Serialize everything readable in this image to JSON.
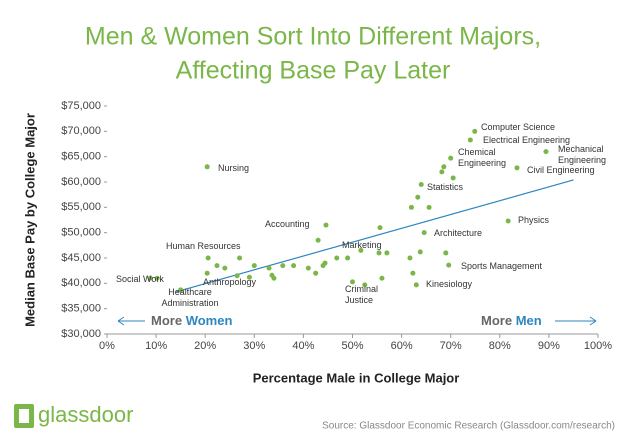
{
  "chart_data": {
    "type": "scatter",
    "title": [
      "Men & Women Sort Into Different Majors,",
      "Affecting Base Pay Later"
    ],
    "x_label": "Percentage Male in College Major",
    "y_label": "Median Base Pay by College Major",
    "direction_left": [
      "More",
      "Women"
    ],
    "direction_right": [
      "More",
      "Men"
    ],
    "color": "#7ab648",
    "xlim": [
      0,
      100
    ],
    "ylim": [
      30000,
      75000
    ],
    "xticks": [
      {
        "value": 0,
        "label": "0%"
      },
      {
        "value": 10,
        "label": "10%"
      },
      {
        "value": 20,
        "label": "20%"
      },
      {
        "value": 30,
        "label": "30%"
      },
      {
        "value": 40,
        "label": "40%"
      },
      {
        "value": 50,
        "label": "50%"
      },
      {
        "value": 60,
        "label": "60%"
      },
      {
        "value": 70,
        "label": "70%"
      },
      {
        "value": 80,
        "label": "80%"
      },
      {
        "value": 90,
        "label": "90%"
      },
      {
        "value": 100,
        "label": "100%"
      }
    ],
    "yticks": [
      {
        "value": 30000,
        "label": "$30,000"
      },
      {
        "value": 35000,
        "label": "$35,000"
      },
      {
        "value": 40000,
        "label": "$40,000"
      },
      {
        "value": 45000,
        "label": "$45,000"
      },
      {
        "value": 50000,
        "label": "$50,000"
      },
      {
        "value": 55000,
        "label": "$55,000"
      },
      {
        "value": 60000,
        "label": "$60,000"
      },
      {
        "value": 65000,
        "label": "$65,000"
      },
      {
        "value": 70000,
        "label": "$70,000"
      },
      {
        "value": 75000,
        "label": "$75,000"
      }
    ],
    "x": [
      8.8,
      10.2,
      15,
      20.4,
      20.6,
      20.4,
      22.4,
      24,
      27,
      26.5,
      29,
      30,
      33,
      33.6,
      34,
      35.8,
      38,
      41,
      42.5,
      44,
      44.4,
      43,
      44.6,
      46.8,
      49,
      51.7,
      55.4,
      50,
      52.5,
      56,
      55.6,
      57,
      61.7,
      62.3,
      63,
      64.6,
      63.8,
      69,
      69.6,
      62,
      63.3,
      64,
      65.6,
      68.2,
      68.6,
      70,
      70.5,
      74,
      74.9,
      83.5,
      81.7,
      89.4
    ],
    "values": [
      41000,
      41000,
      38700,
      63000,
      45000,
      42000,
      43500,
      43000,
      45000,
      41500,
      41200,
      43500,
      43000,
      41600,
      41000,
      43500,
      43500,
      43000,
      42000,
      43500,
      44000,
      48500,
      51500,
      45000,
      45000,
      46500,
      46000,
      40300,
      39700,
      41000,
      51000,
      46000,
      45000,
      42000,
      39700,
      50000,
      46200,
      46000,
      43600,
      55000,
      57000,
      59500,
      55000,
      62000,
      63000,
      64700,
      60800,
      68300,
      70000,
      62800,
      52300,
      66000
    ],
    "trendline": {
      "color": "#2e86c1",
      "x": [
        14,
        95
      ],
      "y": [
        38300,
        60400
      ]
    },
    "annotations": [
      [
        "Computer Science"
      ],
      [
        "Electrical Engineering"
      ],
      [
        "Chemical",
        "Engineering"
      ],
      [
        "Mechanical",
        "Engineering"
      ],
      [
        "Civil Engineering"
      ],
      [
        "Nursing"
      ],
      [
        "Statistics"
      ],
      [
        "Accounting"
      ],
      [
        "Physics"
      ],
      [
        "Architecture"
      ],
      [
        "Human Resources"
      ],
      [
        "Marketing"
      ],
      [
        "Sports Management"
      ],
      [
        "Social Work"
      ],
      [
        "Anthropology"
      ],
      [
        "Kinesiology"
      ],
      [
        "Healthcare",
        "Administration"
      ],
      [
        "Criminal",
        "Justice"
      ]
    ]
  },
  "footer": {
    "logo": "glassdoor",
    "source": "Source: Glassdoor Economic Research (Glassdoor.com/research)"
  }
}
